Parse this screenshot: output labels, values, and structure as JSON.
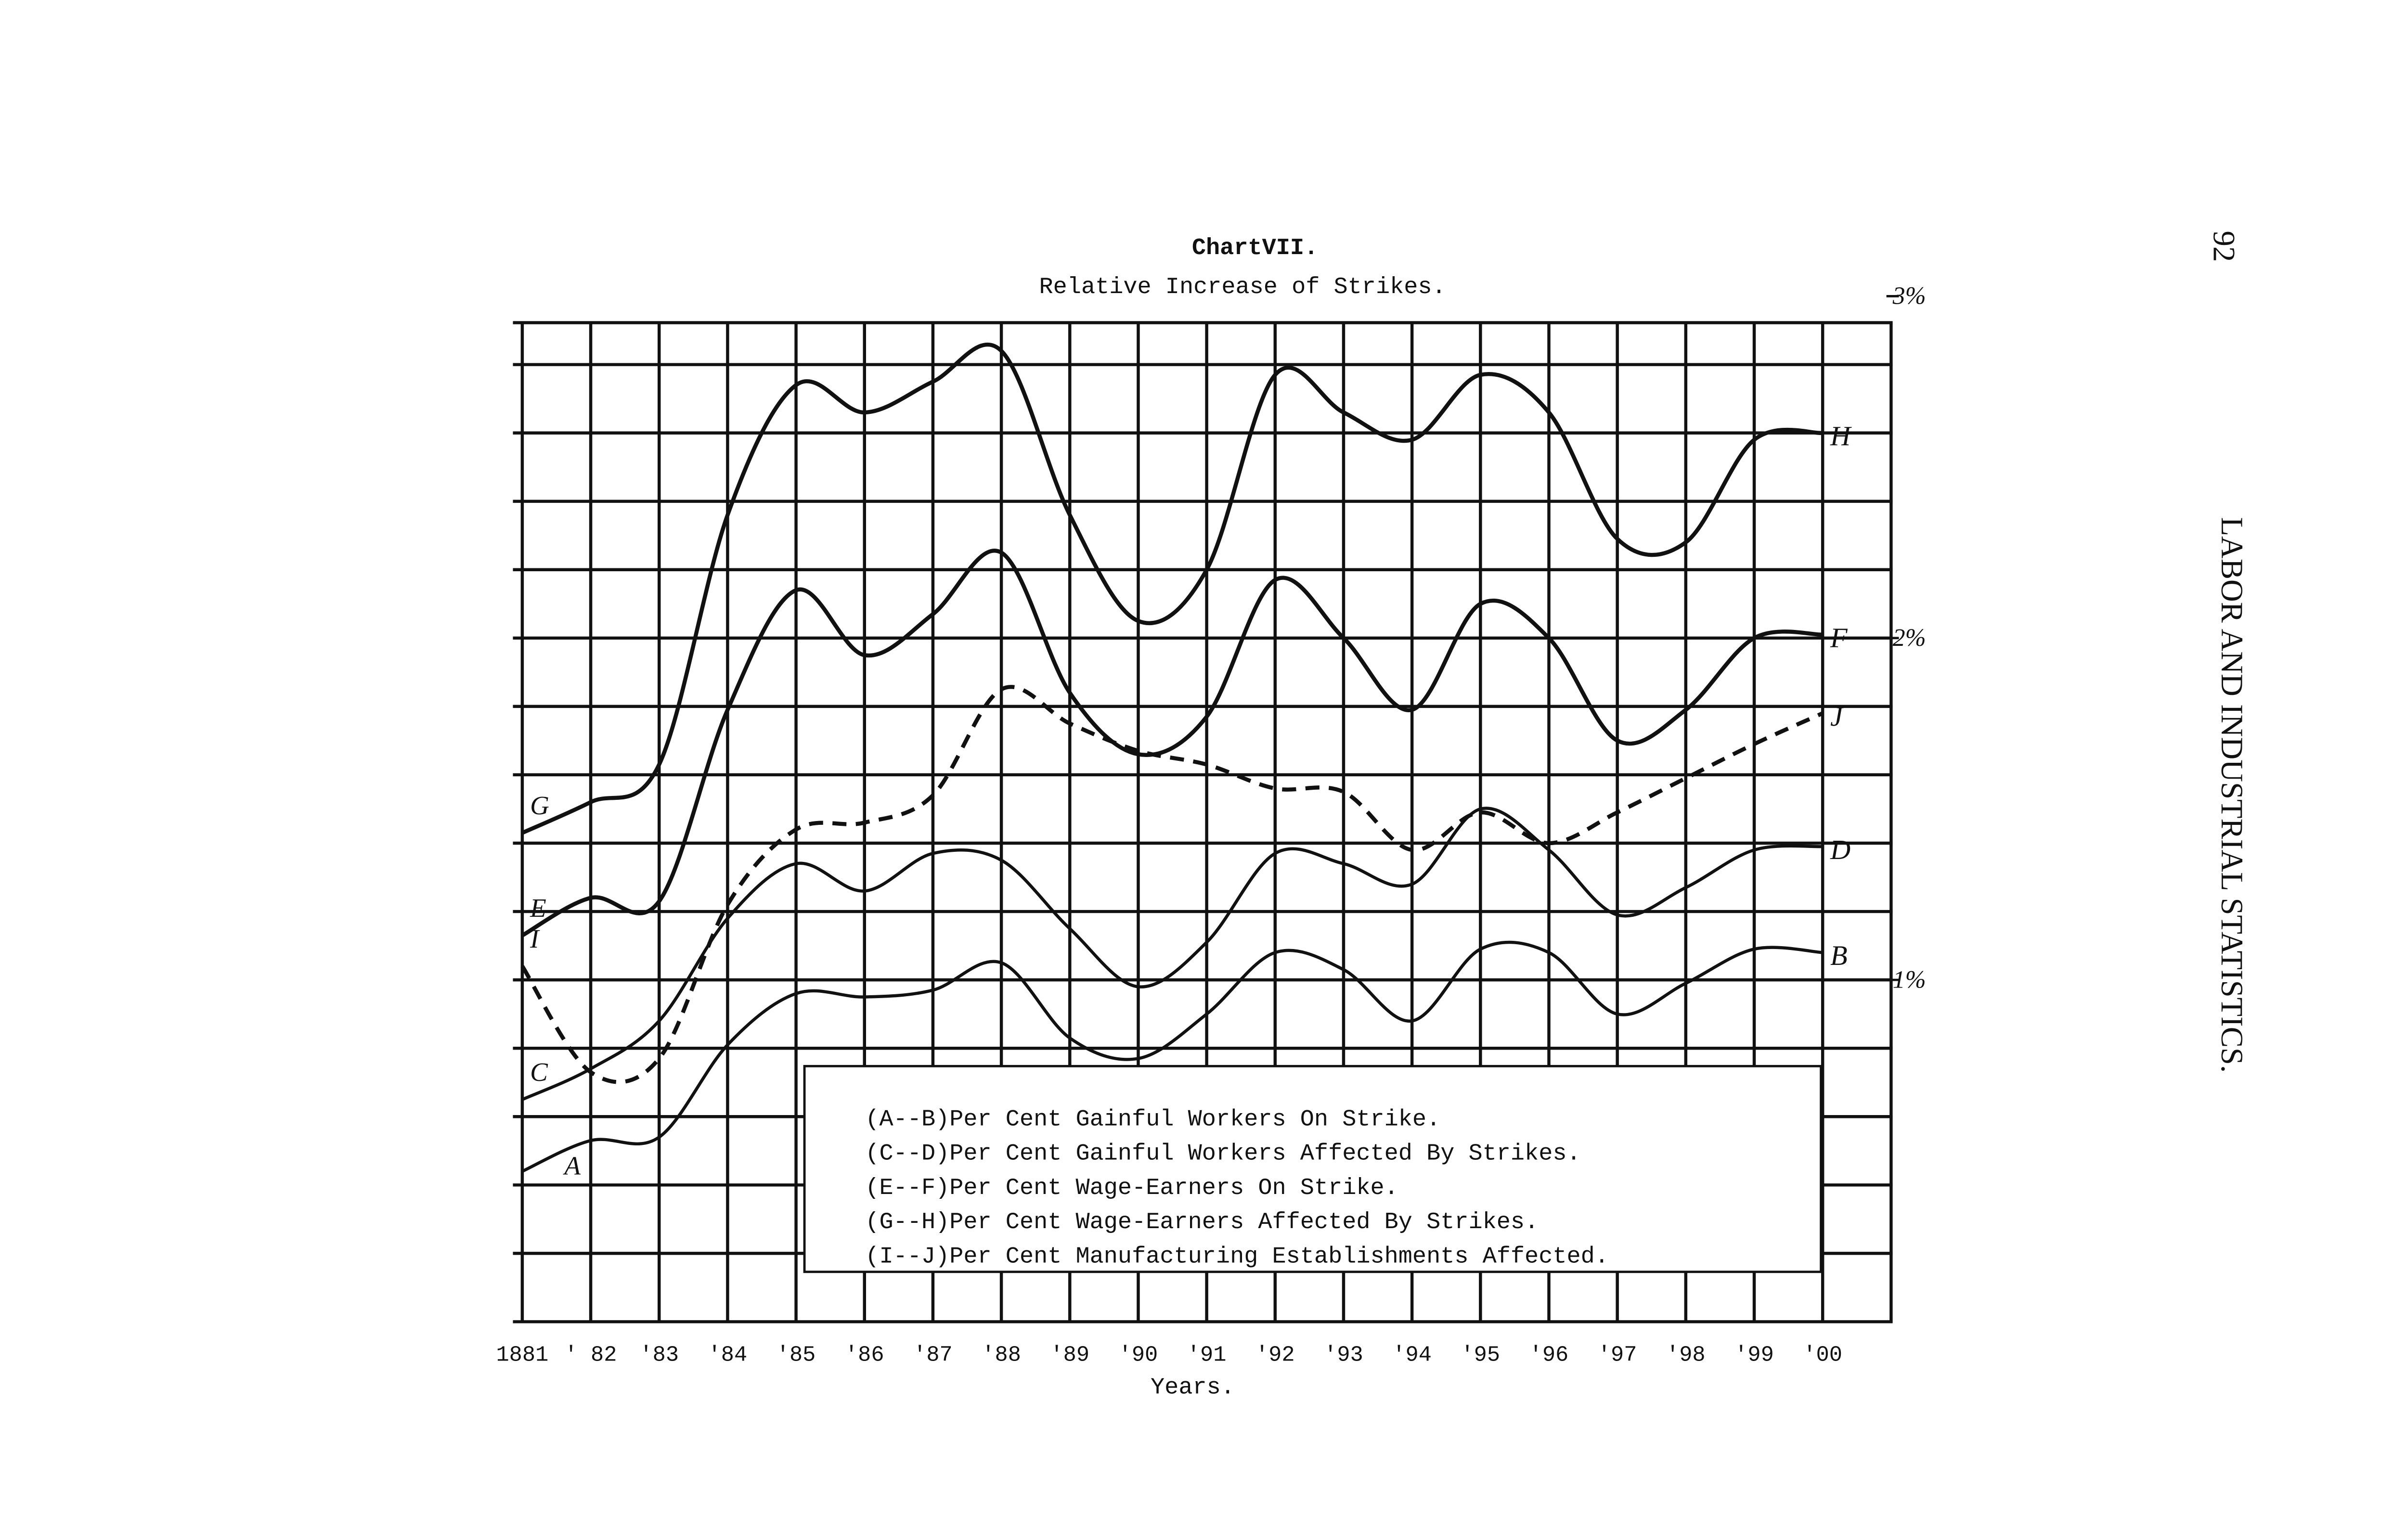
{
  "page": {
    "number": "92",
    "running_head": "LABOR AND INDUSTRIAL STATISTICS."
  },
  "chart_data": {
    "type": "line",
    "title": "ChartVII.",
    "subtitle": "Relative Increase of Strikes.",
    "x_label": "Years.",
    "categories": [
      "1881",
      "' 82",
      "'83",
      "'84",
      "'85",
      "'86",
      "'87",
      "'88",
      "'89",
      "'90",
      "'91",
      "'92",
      "'93",
      "'94",
      "'95",
      "'96",
      "'97",
      "'98",
      "'99",
      "'00"
    ],
    "ylim": [
      0,
      3
    ],
    "yticks": [
      {
        "value": 1,
        "label": "1%"
      },
      {
        "value": 2,
        "label": "2%"
      },
      {
        "value": 3,
        "label": "3%"
      }
    ],
    "ygrid": [
      0,
      0.2,
      0.4,
      0.6,
      0.8,
      1,
      1.2,
      1.4,
      1.6,
      1.8,
      2,
      2.2,
      2.4,
      2.6,
      2.8,
      3
    ],
    "series": [
      {
        "name": "(A--B)Per Cent Gainful Workers On Strike.",
        "start_label": "A",
        "end_label": "B",
        "color": "#111",
        "style": "solid",
        "values": [
          0.44,
          0.53,
          0.54,
          0.81,
          0.96,
          0.95,
          0.97,
          1.05,
          0.83,
          0.77,
          0.9,
          1.08,
          1.03,
          0.88,
          1.09,
          1.08,
          0.9,
          0.99,
          1.09,
          1.08
        ]
      },
      {
        "name": "(C--D)Per Cent Gainful Workers Affected By Strikes.",
        "start_label": "C",
        "end_label": "D",
        "color": "#111",
        "style": "solid",
        "values": [
          0.65,
          0.74,
          0.88,
          1.18,
          1.34,
          1.26,
          1.37,
          1.35,
          1.15,
          0.98,
          1.11,
          1.37,
          1.34,
          1.28,
          1.5,
          1.38,
          1.19,
          1.27,
          1.38,
          1.39
        ]
      },
      {
        "name": "(E--F)Per Cent Wage-Earners On Strike.",
        "start_label": "E",
        "end_label": "F",
        "color": "#111",
        "style": "solid",
        "values": [
          1.13,
          1.24,
          1.23,
          1.79,
          2.14,
          1.95,
          2.07,
          2.25,
          1.84,
          1.66,
          1.77,
          2.17,
          2.0,
          1.79,
          2.1,
          2.0,
          1.7,
          1.79,
          2.0,
          2.01
        ]
      },
      {
        "name": "(G--H)Per Cent Wage-Earners Affected By Strikes.",
        "start_label": "G",
        "end_label": "H",
        "color": "#111",
        "style": "solid",
        "values": [
          1.43,
          1.52,
          1.63,
          2.36,
          2.74,
          2.66,
          2.75,
          2.84,
          2.36,
          2.05,
          2.2,
          2.77,
          2.66,
          2.58,
          2.77,
          2.66,
          2.29,
          2.28,
          2.58,
          2.6
        ]
      },
      {
        "name": "(I--J)Per Cent Manufacturing Establishments Affected.",
        "start_label": "I",
        "end_label": "J",
        "color": "#111",
        "style": "dashed",
        "values": [
          1.04,
          0.73,
          0.77,
          1.22,
          1.44,
          1.46,
          1.54,
          1.85,
          1.75,
          1.67,
          1.63,
          1.56,
          1.55,
          1.38,
          1.49,
          1.4,
          1.49,
          1.59,
          1.69,
          1.78
        ]
      }
    ]
  }
}
